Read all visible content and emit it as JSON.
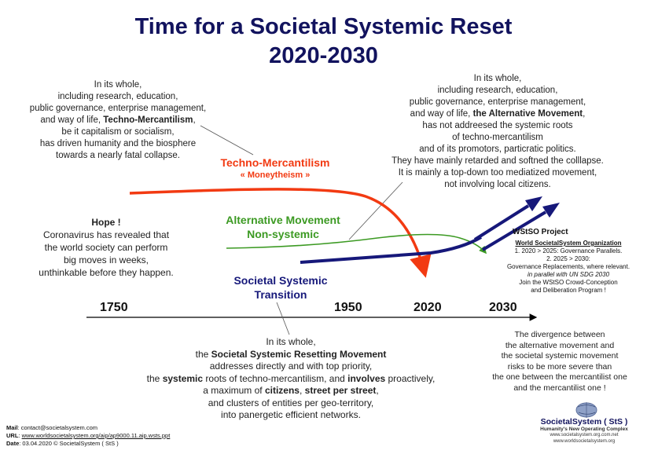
{
  "title": {
    "line1": "Time for a Societal Systemic Reset",
    "line2": "2020-2030"
  },
  "left_block": {
    "l1": "In its whole,",
    "l2": "including research, education,",
    "l3": "public governance, enterprise management,",
    "l4_pre": "and way of life, ",
    "l4_bold": "Techno-Mercantilism",
    "l4_post": ",",
    "l5": "be it capitalism or socialism,",
    "l6": "has driven humanity and the biosphere",
    "l7": "towards a nearly fatal collapse."
  },
  "right_block": {
    "l1": "In its whole,",
    "l2": "including research, education,",
    "l3": "public governance, enterprise management,",
    "l4_pre": "and way of life, ",
    "l4_bold": "the Alternative Movement",
    "l4_post": ",",
    "l5": "has not addreesed the systemic roots",
    "l6": "of techno-mercantilism",
    "l7": "and of its promotors, particratic politics.",
    "l8": "They have mainly retarded and softned the colllapse.",
    "l9": "It is mainly a top-down too mediatized movement,",
    "l10": "not involving local citizens."
  },
  "techno_label": {
    "name": "Techno-Mercantilism",
    "sub": "« Moneytheism »"
  },
  "alt_label": {
    "l1": "Alternative Movement",
    "l2": "Non-systemic"
  },
  "sst_label": {
    "l1": "Societal Systemic",
    "l2": "Transition"
  },
  "hope_block": {
    "head": "Hope !",
    "l1": "Coronavirus has revealed that",
    "l2": "the world society can perform",
    "l3": "big moves in weeks,",
    "l4": "unthinkable before they happen."
  },
  "wstso_block": {
    "head": "WStSO Project",
    "l1": "World SocietalSystem Organization",
    "l2": "1. 2020 > 2025: Governance Parallels.",
    "l3": "2. 2025 > 2030:",
    "l4": "Governance Replacements, where relevant.",
    "l5": "in parallel with UN SDG 2030",
    "l6": "Join the WStSO Crowd-Conception",
    "l7": "and Deliberation Program !"
  },
  "timeline": {
    "y1750": "1750",
    "y1950": "1950",
    "y2020": "2020",
    "y2030": "2030"
  },
  "bottom_block": {
    "l1": "In its whole,",
    "l2_pre": "the ",
    "l2_bold": "Societal Systemic Resetting Movement",
    "l3": "addresses directly and with top priority,",
    "l4_pre": "the ",
    "l4_bold1": "systemic",
    "l4_mid": " roots of techno-mercantilism, and ",
    "l4_bold2": "involves",
    "l4_post": " proactively,",
    "l5_pre": "a maximum of ",
    "l5_bold1": "citizens",
    "l5_mid": ", ",
    "l5_bold2": "street per street",
    "l5_post": ",",
    "l6": "and clusters of entities per geo-territory,",
    "l7": "into panergetic efficient networks."
  },
  "divergence_block": {
    "l1": "The divergence between",
    "l2": "the alternative movement and",
    "l3": "the societal systemic movement",
    "l4": "risks to be more severe than",
    "l5": "the one between the mercantilist one",
    "l6": "and the mercantilist one !"
  },
  "footer": {
    "mail_label": "Mail",
    "mail_value": ": contact@societalsystem.com",
    "url_label": "URL",
    "url_value": "www.worldsocietalsystem.org/aip/ap9000.11.aip.wsts.ppt",
    "date_label": "Date",
    "date_value": ": 03.04.2020      © SocietalSystem ( StS )"
  },
  "logo": {
    "name": "SocietalSystem ( StS )",
    "tagline": "Humanity's New Operating Complex",
    "url1": "www.societalsystem.org.com.net",
    "url2": "www.worldsocietalsystem.org"
  },
  "colors": {
    "navy": "#12135e",
    "red": "#f23a12",
    "green": "#3c9a23",
    "arrow_navy": "#16187a"
  }
}
